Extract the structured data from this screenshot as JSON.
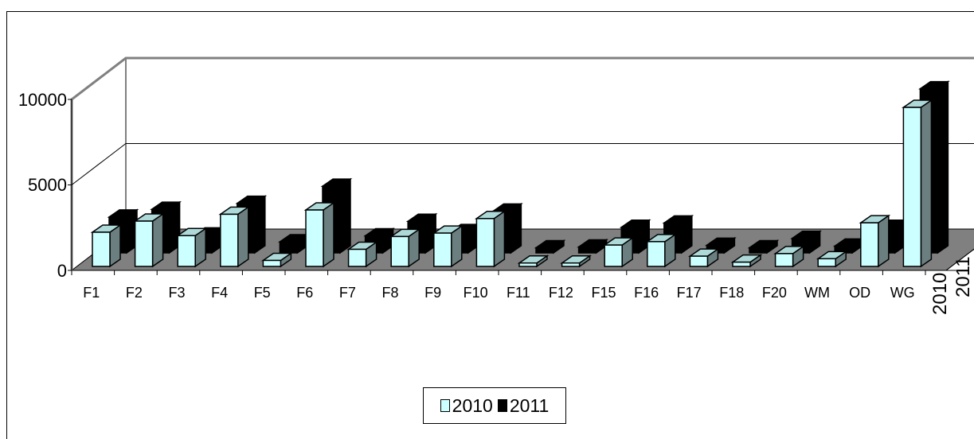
{
  "chart_data": {
    "type": "bar",
    "style": "3d-clustered-depth",
    "categories": [
      "F1",
      "F2",
      "F3",
      "F4",
      "F5",
      "F6",
      "F7",
      "F8",
      "F9",
      "F10",
      "F11",
      "F12",
      "F15",
      "F16",
      "F17",
      "F18",
      "F20",
      "WM",
      "OD",
      "WG"
    ],
    "series": [
      {
        "name": "2010",
        "color": "#ccffff",
        "values": [
          2000,
          2650,
          1800,
          3050,
          350,
          3300,
          1000,
          1750,
          1950,
          2800,
          200,
          200,
          1250,
          1450,
          600,
          250,
          750,
          450,
          2550,
          9300
        ]
      },
      {
        "name": "2011",
        "color": "#000000",
        "values": [
          2100,
          2550,
          1050,
          2900,
          650,
          3900,
          1000,
          1850,
          1250,
          2450,
          300,
          350,
          1500,
          1750,
          450,
          300,
          850,
          400,
          1500,
          9600
        ]
      }
    ],
    "y_ticks": [
      "0",
      "5000",
      "10000"
    ],
    "depth_labels": [
      "2010",
      "2011"
    ],
    "ylim": [
      0,
      10000
    ],
    "legend_position": "bottom",
    "title": "",
    "xlabel": "",
    "ylabel": ""
  }
}
